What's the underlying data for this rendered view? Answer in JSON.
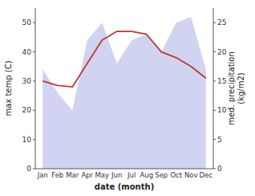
{
  "chart_data": {
    "type": "line",
    "categories": [
      "Jan",
      "Feb",
      "Mar",
      "Apr",
      "May",
      "Jun",
      "Jul",
      "Aug",
      "Sep",
      "Oct",
      "Nov",
      "Dec"
    ],
    "series": [
      {
        "type": "line",
        "color": "#c0392b",
        "values": [
          30,
          28.5,
          28,
          36,
          44,
          47,
          47,
          46,
          40,
          38,
          35,
          31
        ]
      },
      {
        "type": "area",
        "color": "#b0b8e8",
        "axis": "y2",
        "values": [
          17,
          13,
          10,
          22,
          25,
          18,
          22,
          23,
          20,
          25,
          26,
          17
        ]
      }
    ],
    "xlabel": "date (month)",
    "ylabel": "max temp (C)",
    "y2label": "med. precipitation\n(kg/m2)",
    "ylim": [
      0,
      55
    ],
    "yticks": [
      0,
      10,
      20,
      30,
      40,
      50
    ],
    "y2lim": [
      0,
      27.5
    ],
    "y2ticks": [
      0,
      5,
      10,
      15,
      20,
      25
    ],
    "grid": false
  }
}
